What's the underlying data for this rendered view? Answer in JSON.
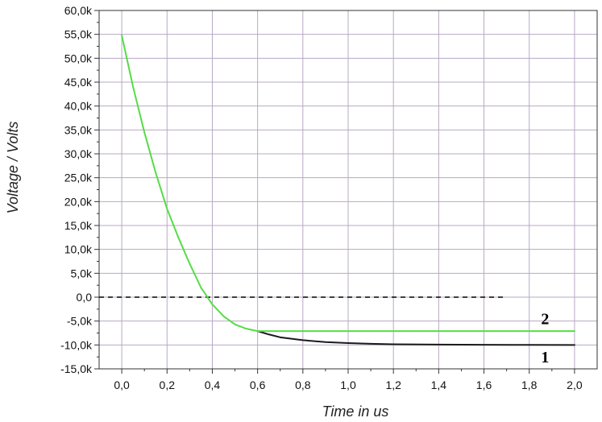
{
  "chart_data": {
    "type": "line",
    "title": "",
    "xlabel": "Time in us",
    "ylabel": "Voltage / Volts",
    "xlim": [
      -0.1,
      2.1
    ],
    "ylim": [
      -15000,
      60000
    ],
    "grid": true,
    "x_ticks": [
      0,
      0.2,
      0.4,
      0.6,
      0.8,
      1.0,
      1.2,
      1.4,
      1.6,
      1.8,
      2.0
    ],
    "x_tick_labels": [
      "0,0",
      "0,2",
      "0,4",
      "0,6",
      "0,8",
      "1,0",
      "1,2",
      "1,4",
      "1,6",
      "1,8",
      "2,0"
    ],
    "y_ticks": [
      -15000,
      -10000,
      -5000,
      0,
      5000,
      10000,
      15000,
      20000,
      25000,
      30000,
      35000,
      40000,
      45000,
      50000,
      55000,
      60000
    ],
    "y_tick_labels": [
      "-15,0k",
      "-10,0k",
      "-5,0k",
      "0,0",
      "5,0k",
      "10,0k",
      "15,0k",
      "20,0k",
      "25,0k",
      "30,0k",
      "35,0k",
      "40,0k",
      "45,0k",
      "50,0k",
      "55,0k",
      "60,0k"
    ],
    "zero_reference_line": {
      "y": 0,
      "x_range": [
        -0.1,
        1.7
      ],
      "style": "dashed",
      "color": "#000000"
    },
    "series": [
      {
        "label": "1",
        "color": "#1a1a1a",
        "points": [
          [
            0.6,
            -7100
          ],
          [
            0.65,
            -7800
          ],
          [
            0.7,
            -8400
          ],
          [
            0.8,
            -9000
          ],
          [
            0.9,
            -9400
          ],
          [
            1.0,
            -9600
          ],
          [
            1.1,
            -9750
          ],
          [
            1.2,
            -9850
          ],
          [
            1.4,
            -9920
          ],
          [
            1.6,
            -9960
          ],
          [
            1.8,
            -9990
          ],
          [
            2.0,
            -10000
          ]
        ]
      },
      {
        "label": "2",
        "color": "#55dd44",
        "points": [
          [
            0.0,
            54800
          ],
          [
            0.05,
            44000
          ],
          [
            0.1,
            34500
          ],
          [
            0.15,
            26000
          ],
          [
            0.2,
            18500
          ],
          [
            0.25,
            12500
          ],
          [
            0.3,
            7000
          ],
          [
            0.35,
            2000
          ],
          [
            0.4,
            -1500
          ],
          [
            0.45,
            -4000
          ],
          [
            0.5,
            -5700
          ],
          [
            0.55,
            -6600
          ],
          [
            0.6,
            -7100
          ],
          [
            0.8,
            -7100
          ],
          [
            1.0,
            -7100
          ],
          [
            1.2,
            -7100
          ],
          [
            1.4,
            -7100
          ],
          [
            1.6,
            -7100
          ],
          [
            1.8,
            -7100
          ],
          [
            2.0,
            -7100
          ]
        ]
      }
    ],
    "curve_labels": [
      {
        "text": "1",
        "series": "1",
        "x": 1.87,
        "y": -12500
      },
      {
        "text": "2",
        "series": "2",
        "x": 1.87,
        "y": -4500
      }
    ],
    "colors": {
      "grid": "#b7a9c4",
      "axis": "#333333"
    }
  }
}
